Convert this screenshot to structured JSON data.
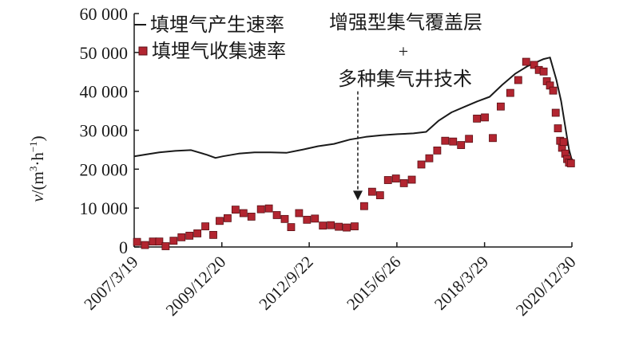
{
  "chart_data": {
    "type": "line",
    "title": "",
    "ylabel_parts": [
      "v",
      "/(m",
      "3",
      "·h",
      "−1",
      ")"
    ],
    "y_ticks": [
      0,
      10000,
      20000,
      30000,
      40000,
      50000,
      60000
    ],
    "y_tick_labels": [
      "0",
      "10 000",
      "20 000",
      "30 000",
      "40 000",
      "50 000",
      "60 000"
    ],
    "ylim": [
      0,
      60000
    ],
    "x_ticks": [
      2007.21,
      2009.97,
      2012.72,
      2015.48,
      2018.24,
      2020.99
    ],
    "x_tick_labels": [
      "2007/3/19",
      "2009/12/20",
      "2012/9/22",
      "2015/6/26",
      "2018/3/29",
      "2020/12/30"
    ],
    "xlim": [
      2007.21,
      2020.99
    ],
    "legend": {
      "placement": "top-left",
      "entries": [
        {
          "label": "填埋气产生速率",
          "marker": "line"
        },
        {
          "label": "填埋气收集速率",
          "marker": "square"
        }
      ]
    },
    "annotation": {
      "lines": [
        "增强型集气覆盖层",
        "+",
        "多种集气井技术"
      ],
      "arrow_x": 2014.25,
      "arrow_y_top": 40000,
      "arrow_y_bottom": 12000
    },
    "colors": {
      "line": "#1a1a1a",
      "marker_fill": "#b22530",
      "marker_edge": "#5a0f14",
      "axis": "#1a1a1a"
    },
    "series": [
      {
        "name": "填埋气产生速率",
        "style": "line",
        "points": [
          [
            2007.21,
            23300
          ],
          [
            2007.6,
            23800
          ],
          [
            2008.0,
            24300
          ],
          [
            2008.5,
            24700
          ],
          [
            2009.0,
            24900
          ],
          [
            2009.5,
            23700
          ],
          [
            2009.77,
            22900
          ],
          [
            2010.0,
            23300
          ],
          [
            2010.5,
            24000
          ],
          [
            2011.0,
            24300
          ],
          [
            2011.5,
            24300
          ],
          [
            2012.0,
            24200
          ],
          [
            2012.5,
            25000
          ],
          [
            2013.0,
            25900
          ],
          [
            2013.5,
            26500
          ],
          [
            2014.0,
            27600
          ],
          [
            2014.5,
            28300
          ],
          [
            2015.0,
            28700
          ],
          [
            2015.5,
            29000
          ],
          [
            2016.0,
            29200
          ],
          [
            2016.4,
            29600
          ],
          [
            2016.8,
            32500
          ],
          [
            2017.2,
            34600
          ],
          [
            2017.6,
            36000
          ],
          [
            2018.0,
            37400
          ],
          [
            2018.4,
            38600
          ],
          [
            2018.8,
            41700
          ],
          [
            2019.2,
            44500
          ],
          [
            2019.6,
            46500
          ],
          [
            2019.9,
            47600
          ],
          [
            2020.1,
            48300
          ],
          [
            2020.3,
            48700
          ],
          [
            2020.5,
            43000
          ],
          [
            2020.65,
            37500
          ],
          [
            2020.8,
            30000
          ],
          [
            2020.9,
            25000
          ],
          [
            2021.0,
            22000
          ]
        ]
      },
      {
        "name": "填埋气收集速率",
        "style": "square",
        "points": [
          [
            2007.3,
            1300
          ],
          [
            2007.55,
            500
          ],
          [
            2007.8,
            1400
          ],
          [
            2008.0,
            1400
          ],
          [
            2008.2,
            200
          ],
          [
            2008.45,
            1600
          ],
          [
            2008.7,
            2500
          ],
          [
            2008.95,
            2900
          ],
          [
            2009.2,
            3500
          ],
          [
            2009.45,
            5300
          ],
          [
            2009.7,
            3100
          ],
          [
            2009.9,
            6700
          ],
          [
            2010.15,
            7400
          ],
          [
            2010.4,
            9600
          ],
          [
            2010.65,
            8700
          ],
          [
            2010.9,
            7800
          ],
          [
            2011.2,
            9700
          ],
          [
            2011.45,
            9900
          ],
          [
            2011.7,
            8200
          ],
          [
            2011.95,
            7200
          ],
          [
            2012.15,
            5100
          ],
          [
            2012.4,
            8700
          ],
          [
            2012.65,
            7000
          ],
          [
            2012.9,
            7300
          ],
          [
            2013.15,
            5500
          ],
          [
            2013.4,
            5600
          ],
          [
            2013.65,
            5200
          ],
          [
            2013.9,
            5000
          ],
          [
            2014.15,
            5300
          ],
          [
            2014.45,
            10500
          ],
          [
            2014.7,
            14200
          ],
          [
            2014.95,
            13300
          ],
          [
            2015.2,
            17200
          ],
          [
            2015.45,
            17600
          ],
          [
            2015.7,
            16400
          ],
          [
            2015.95,
            17300
          ],
          [
            2016.25,
            21200
          ],
          [
            2016.5,
            22800
          ],
          [
            2016.75,
            24800
          ],
          [
            2017.0,
            27300
          ],
          [
            2017.25,
            27100
          ],
          [
            2017.5,
            26200
          ],
          [
            2017.75,
            27800
          ],
          [
            2018.0,
            33000
          ],
          [
            2018.25,
            33300
          ],
          [
            2018.5,
            28000
          ],
          [
            2018.75,
            36100
          ],
          [
            2019.05,
            39600
          ],
          [
            2019.3,
            42900
          ],
          [
            2019.55,
            47600
          ],
          [
            2019.8,
            46800
          ],
          [
            2019.95,
            45500
          ],
          [
            2020.1,
            45100
          ],
          [
            2020.2,
            42600
          ],
          [
            2020.3,
            41500
          ],
          [
            2020.4,
            40200
          ],
          [
            2020.48,
            34500
          ],
          [
            2020.55,
            30500
          ],
          [
            2020.62,
            27300
          ],
          [
            2020.68,
            25500
          ],
          [
            2020.73,
            27000
          ],
          [
            2020.78,
            24000
          ],
          [
            2020.84,
            22600
          ],
          [
            2020.9,
            21700
          ],
          [
            2020.96,
            21500
          ]
        ]
      }
    ]
  }
}
